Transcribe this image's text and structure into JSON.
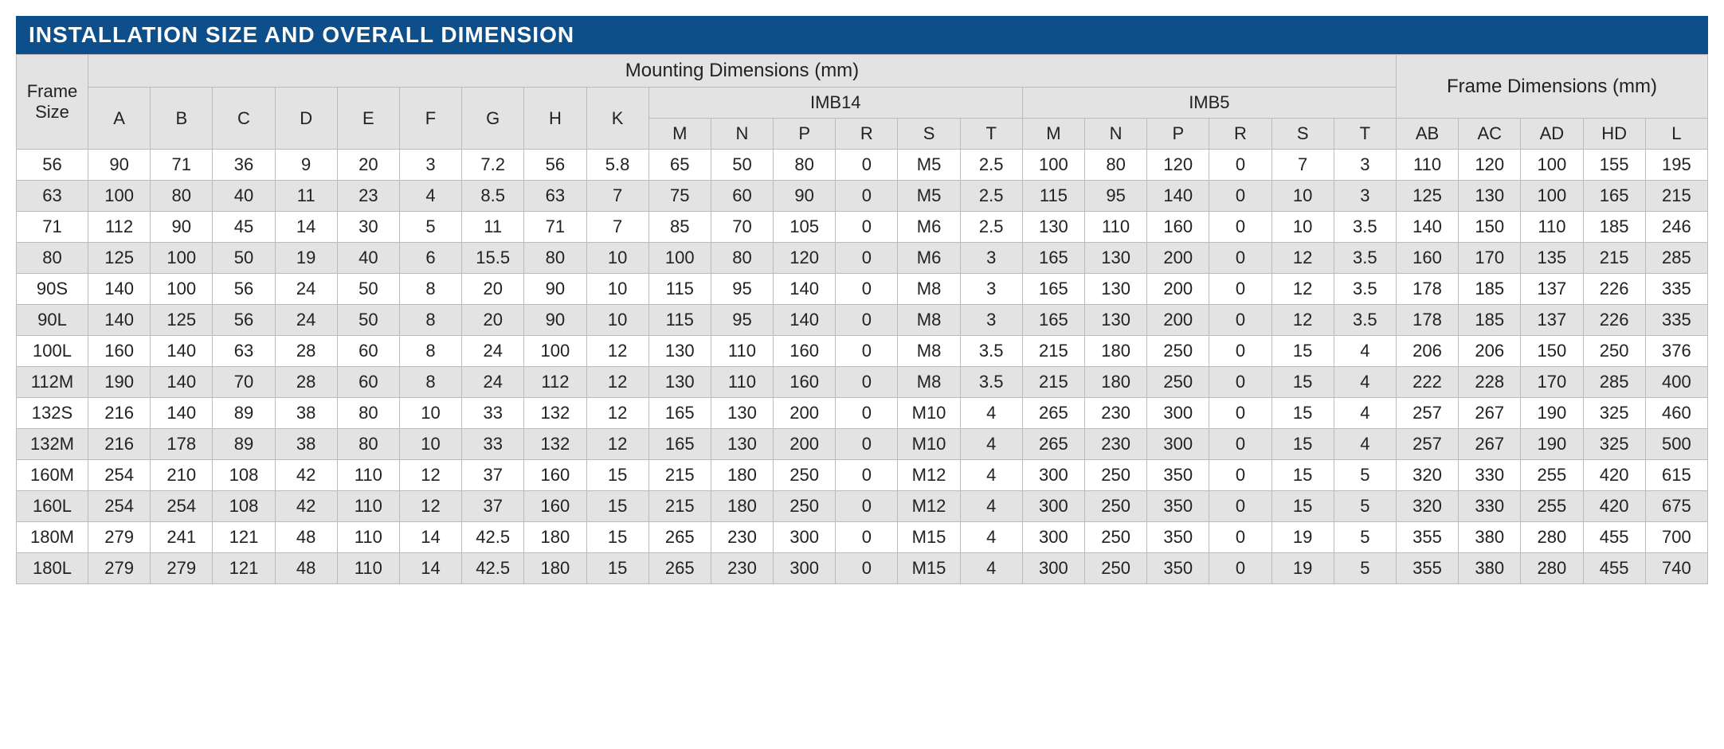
{
  "title": "INSTALLATION SIZE AND OVERALL DIMENSION",
  "table": {
    "type": "table",
    "background_color": "#ffffff",
    "alt_row_color": "#e3e3e3",
    "border_color": "#bbbbbb",
    "title_bar_color": "#0d4f8b",
    "title_text_color": "#ffffff",
    "font_family": "Arial",
    "header_fontsize": 24,
    "cell_fontsize": 22,
    "headers": {
      "frame_size": "Frame Size",
      "mounting": "Mounting Dimensions (mm)",
      "imb14": "IMB14",
      "imb5": "IMB5",
      "frame_dims": "Frame Dimensions (mm)"
    },
    "columns": [
      "A",
      "B",
      "C",
      "D",
      "E",
      "F",
      "G",
      "H",
      "K",
      "M",
      "N",
      "P",
      "R",
      "S",
      "T",
      "M",
      "N",
      "P",
      "R",
      "S",
      "T",
      "AB",
      "AC",
      "AD",
      "HD",
      "L"
    ],
    "rows": [
      {
        "frame": "56",
        "cells": [
          "90",
          "71",
          "36",
          "9",
          "20",
          "3",
          "7.2",
          "56",
          "5.8",
          "65",
          "50",
          "80",
          "0",
          "M5",
          "2.5",
          "100",
          "80",
          "120",
          "0",
          "7",
          "3",
          "110",
          "120",
          "100",
          "155",
          "195"
        ]
      },
      {
        "frame": "63",
        "cells": [
          "100",
          "80",
          "40",
          "11",
          "23",
          "4",
          "8.5",
          "63",
          "7",
          "75",
          "60",
          "90",
          "0",
          "M5",
          "2.5",
          "115",
          "95",
          "140",
          "0",
          "10",
          "3",
          "125",
          "130",
          "100",
          "165",
          "215"
        ]
      },
      {
        "frame": "71",
        "cells": [
          "112",
          "90",
          "45",
          "14",
          "30",
          "5",
          "11",
          "71",
          "7",
          "85",
          "70",
          "105",
          "0",
          "M6",
          "2.5",
          "130",
          "110",
          "160",
          "0",
          "10",
          "3.5",
          "140",
          "150",
          "110",
          "185",
          "246"
        ]
      },
      {
        "frame": "80",
        "cells": [
          "125",
          "100",
          "50",
          "19",
          "40",
          "6",
          "15.5",
          "80",
          "10",
          "100",
          "80",
          "120",
          "0",
          "M6",
          "3",
          "165",
          "130",
          "200",
          "0",
          "12",
          "3.5",
          "160",
          "170",
          "135",
          "215",
          "285"
        ]
      },
      {
        "frame": "90S",
        "cells": [
          "140",
          "100",
          "56",
          "24",
          "50",
          "8",
          "20",
          "90",
          "10",
          "115",
          "95",
          "140",
          "0",
          "M8",
          "3",
          "165",
          "130",
          "200",
          "0",
          "12",
          "3.5",
          "178",
          "185",
          "137",
          "226",
          "335"
        ]
      },
      {
        "frame": "90L",
        "cells": [
          "140",
          "125",
          "56",
          "24",
          "50",
          "8",
          "20",
          "90",
          "10",
          "115",
          "95",
          "140",
          "0",
          "M8",
          "3",
          "165",
          "130",
          "200",
          "0",
          "12",
          "3.5",
          "178",
          "185",
          "137",
          "226",
          "335"
        ]
      },
      {
        "frame": "100L",
        "cells": [
          "160",
          "140",
          "63",
          "28",
          "60",
          "8",
          "24",
          "100",
          "12",
          "130",
          "110",
          "160",
          "0",
          "M8",
          "3.5",
          "215",
          "180",
          "250",
          "0",
          "15",
          "4",
          "206",
          "206",
          "150",
          "250",
          "376"
        ]
      },
      {
        "frame": "112M",
        "cells": [
          "190",
          "140",
          "70",
          "28",
          "60",
          "8",
          "24",
          "112",
          "12",
          "130",
          "110",
          "160",
          "0",
          "M8",
          "3.5",
          "215",
          "180",
          "250",
          "0",
          "15",
          "4",
          "222",
          "228",
          "170",
          "285",
          "400"
        ]
      },
      {
        "frame": "132S",
        "cells": [
          "216",
          "140",
          "89",
          "38",
          "80",
          "10",
          "33",
          "132",
          "12",
          "165",
          "130",
          "200",
          "0",
          "M10",
          "4",
          "265",
          "230",
          "300",
          "0",
          "15",
          "4",
          "257",
          "267",
          "190",
          "325",
          "460"
        ]
      },
      {
        "frame": "132M",
        "cells": [
          "216",
          "178",
          "89",
          "38",
          "80",
          "10",
          "33",
          "132",
          "12",
          "165",
          "130",
          "200",
          "0",
          "M10",
          "4",
          "265",
          "230",
          "300",
          "0",
          "15",
          "4",
          "257",
          "267",
          "190",
          "325",
          "500"
        ]
      },
      {
        "frame": "160M",
        "cells": [
          "254",
          "210",
          "108",
          "42",
          "110",
          "12",
          "37",
          "160",
          "15",
          "215",
          "180",
          "250",
          "0",
          "M12",
          "4",
          "300",
          "250",
          "350",
          "0",
          "15",
          "5",
          "320",
          "330",
          "255",
          "420",
          "615"
        ]
      },
      {
        "frame": "160L",
        "cells": [
          "254",
          "254",
          "108",
          "42",
          "110",
          "12",
          "37",
          "160",
          "15",
          "215",
          "180",
          "250",
          "0",
          "M12",
          "4",
          "300",
          "250",
          "350",
          "0",
          "15",
          "5",
          "320",
          "330",
          "255",
          "420",
          "675"
        ]
      },
      {
        "frame": "180M",
        "cells": [
          "279",
          "241",
          "121",
          "48",
          "110",
          "14",
          "42.5",
          "180",
          "15",
          "265",
          "230",
          "300",
          "0",
          "M15",
          "4",
          "300",
          "250",
          "350",
          "0",
          "19",
          "5",
          "355",
          "380",
          "280",
          "455",
          "700"
        ]
      },
      {
        "frame": "180L",
        "cells": [
          "279",
          "279",
          "121",
          "48",
          "110",
          "14",
          "42.5",
          "180",
          "15",
          "265",
          "230",
          "300",
          "0",
          "M15",
          "4",
          "300",
          "250",
          "350",
          "0",
          "19",
          "5",
          "355",
          "380",
          "280",
          "455",
          "740"
        ]
      }
    ]
  }
}
